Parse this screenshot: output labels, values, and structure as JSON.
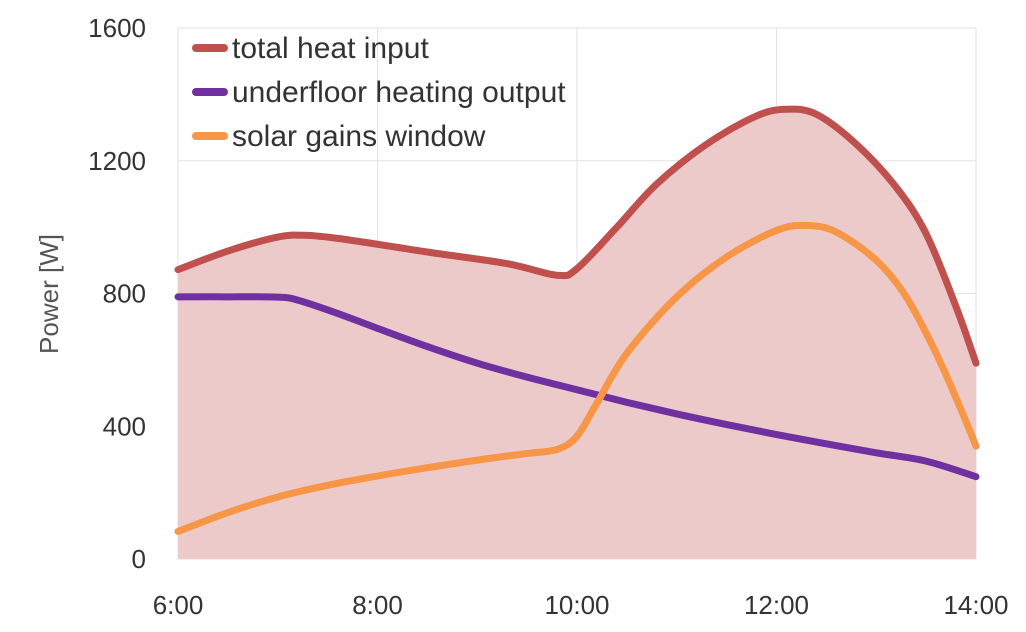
{
  "chart_data": {
    "type": "line",
    "ylabel": "Power [W]",
    "xlabel": "",
    "xlim": [
      6,
      14
    ],
    "ylim": [
      0,
      1600
    ],
    "x_ticks": [
      {
        "value": 6,
        "label": "6:00"
      },
      {
        "value": 8,
        "label": "8:00"
      },
      {
        "value": 10,
        "label": "10:00"
      },
      {
        "value": 12,
        "label": "12:00"
      },
      {
        "value": 14,
        "label": "14:00"
      }
    ],
    "y_ticks": [
      {
        "value": 0,
        "label": "0"
      },
      {
        "value": 400,
        "label": "400"
      },
      {
        "value": 800,
        "label": "800"
      },
      {
        "value": 1200,
        "label": "1200"
      },
      {
        "value": 1600,
        "label": "1600"
      }
    ],
    "grid": true,
    "legend": "top-left",
    "filled_series": "total heat input",
    "fill_color": "#eccaca",
    "series": [
      {
        "name": "total heat input",
        "color": "#c0504d",
        "points": [
          [
            6,
            872
          ],
          [
            6.5,
            928
          ],
          [
            7,
            970
          ],
          [
            7.3,
            975
          ],
          [
            7.7,
            962
          ],
          [
            8.5,
            925
          ],
          [
            9.3,
            890
          ],
          [
            9.8,
            855
          ],
          [
            10,
            875
          ],
          [
            10.4,
            1000
          ],
          [
            10.8,
            1130
          ],
          [
            11.3,
            1250
          ],
          [
            11.8,
            1335
          ],
          [
            12.1,
            1355
          ],
          [
            12.4,
            1340
          ],
          [
            12.8,
            1250
          ],
          [
            13.2,
            1120
          ],
          [
            13.5,
            980
          ],
          [
            13.8,
            760
          ],
          [
            14,
            590
          ]
        ]
      },
      {
        "name": "underfloor heating output",
        "color": "#7030a0",
        "points": [
          [
            6,
            790
          ],
          [
            6.5,
            790
          ],
          [
            7,
            789
          ],
          [
            7.2,
            780
          ],
          [
            7.6,
            740
          ],
          [
            8,
            695
          ],
          [
            8.5,
            640
          ],
          [
            9,
            590
          ],
          [
            9.5,
            548
          ],
          [
            10,
            510
          ],
          [
            10.5,
            472
          ],
          [
            11,
            437
          ],
          [
            11.5,
            405
          ],
          [
            12,
            375
          ],
          [
            12.5,
            347
          ],
          [
            13,
            320
          ],
          [
            13.5,
            295
          ],
          [
            14,
            248
          ]
        ]
      },
      {
        "name": "solar gains window",
        "color": "#f79646",
        "points": [
          [
            6,
            83
          ],
          [
            6.5,
            140
          ],
          [
            7,
            187
          ],
          [
            7.5,
            222
          ],
          [
            8,
            250
          ],
          [
            8.5,
            275
          ],
          [
            9,
            298
          ],
          [
            9.5,
            318
          ],
          [
            9.8,
            330
          ],
          [
            10,
            370
          ],
          [
            10.2,
            470
          ],
          [
            10.5,
            620
          ],
          [
            11,
            790
          ],
          [
            11.5,
            910
          ],
          [
            12,
            990
          ],
          [
            12.3,
            1005
          ],
          [
            12.6,
            985
          ],
          [
            13,
            900
          ],
          [
            13.3,
            790
          ],
          [
            13.6,
            620
          ],
          [
            13.85,
            450
          ],
          [
            14,
            340
          ]
        ]
      }
    ]
  }
}
